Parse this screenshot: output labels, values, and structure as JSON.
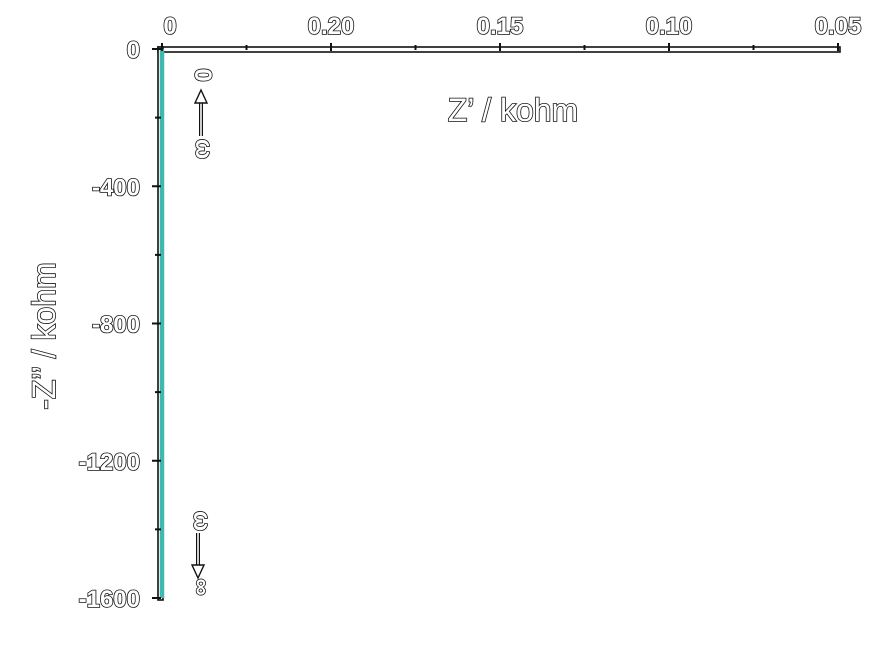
{
  "chart_data": {
    "type": "line",
    "x_axis": {
      "label": "Z’ / kohm",
      "position": "top",
      "tick_labels": [
        "0",
        "0.20",
        "0.15",
        "0.10",
        "0.05"
      ],
      "minor_ticks": true
    },
    "y_axis": {
      "label": "-Z’’ / kohm",
      "tick_labels": [
        "0",
        "-400",
        "-800",
        "-1200",
        "-1600"
      ],
      "minor_ticks": true
    },
    "series": [
      {
        "color": "#3fb8b0",
        "x": [
          0,
          0
        ],
        "y": [
          0,
          -1600
        ]
      }
    ],
    "annotations": [
      {
        "text": "0",
        "symbol": "ω",
        "arrow": "up"
      },
      {
        "text": "∞",
        "symbol": "ω",
        "arrow": "down"
      }
    ],
    "grid": false,
    "legend": "none"
  }
}
